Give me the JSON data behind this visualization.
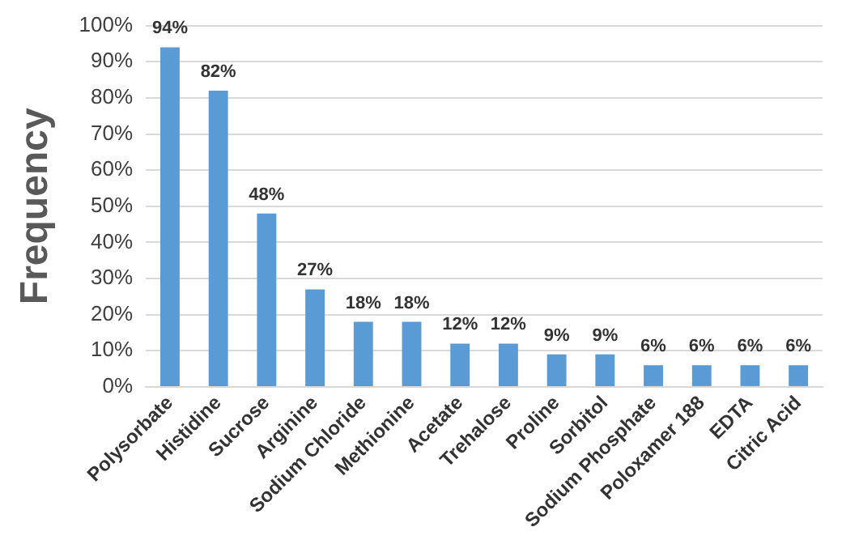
{
  "chart_data": {
    "type": "bar",
    "ylabel": "Frequency",
    "categories": [
      "Polysorbate",
      "Histidine",
      "Sucrose",
      "Arginine",
      "Sodium Chloride",
      "Methionine",
      "Acetate",
      "Trehalose",
      "Proline",
      "Sorbitol",
      "Sodium Phosphate",
      "Poloxamer 188",
      "EDTA",
      "Citric Acid"
    ],
    "values": [
      94,
      82,
      48,
      27,
      18,
      18,
      12,
      12,
      9,
      9,
      6,
      6,
      6,
      6
    ],
    "value_labels": [
      "94%",
      "82%",
      "48%",
      "27%",
      "18%",
      "18%",
      "12%",
      "12%",
      "9%",
      "9%",
      "6%",
      "6%",
      "6%",
      "6%"
    ],
    "color": "#5b9bd5",
    "ylim": [
      0,
      100
    ],
    "yticks": [
      {
        "value": 0,
        "label": "0%"
      },
      {
        "value": 10,
        "label": "10%"
      },
      {
        "value": 20,
        "label": "20%"
      },
      {
        "value": 30,
        "label": "30%"
      },
      {
        "value": 40,
        "label": "40%"
      },
      {
        "value": 50,
        "label": "50%"
      },
      {
        "value": 60,
        "label": "60%"
      },
      {
        "value": 70,
        "label": "70%"
      },
      {
        "value": 80,
        "label": "80%"
      },
      {
        "value": 90,
        "label": "90%"
      },
      {
        "value": 100,
        "label": "100%"
      }
    ],
    "grid": "y",
    "legend": false
  }
}
